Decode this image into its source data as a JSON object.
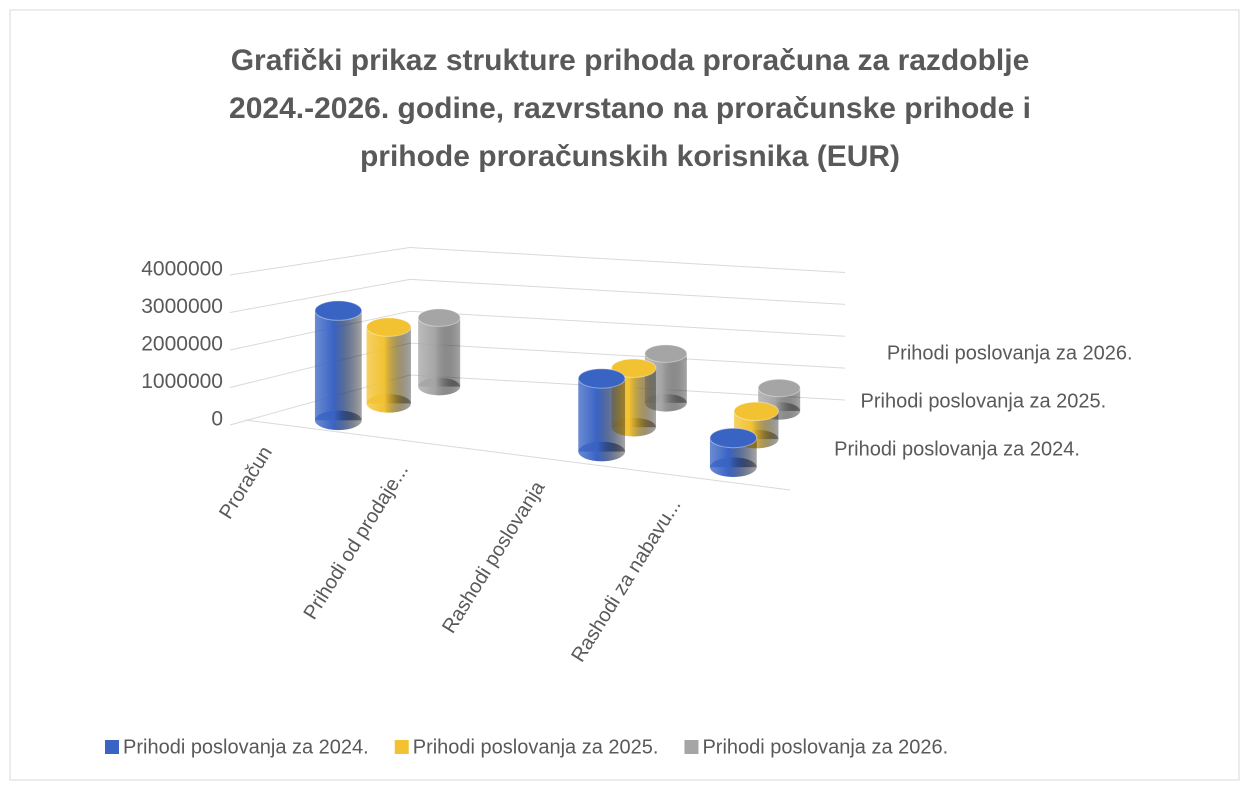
{
  "chart_data": {
    "type": "bar3d",
    "title": [
      "Grafički prikaz strukture prihoda proračuna za razdoblje",
      "2024.-2026. godine, razvrstano na proračunske prihode i",
      "prihode proračunskih korisnika (EUR)"
    ],
    "categories": [
      "Proračun",
      "Prihodi od prodaje...",
      "Rashodi poslovanja",
      "Rashodi za nabavu..."
    ],
    "series": [
      {
        "name": "Prihodi poslovanja za 2024.",
        "color": "#3a64c4",
        "values": [
          3000000,
          0,
          2000000,
          800000
        ]
      },
      {
        "name": "Prihodi poslovanja za 2025.",
        "color": "#f2c232",
        "values": [
          2200000,
          0,
          1700000,
          800000
        ]
      },
      {
        "name": "Prihodi poslovanja za 2026.",
        "color": "#a5a5a5",
        "values": [
          2100000,
          0,
          1500000,
          700000
        ]
      }
    ],
    "ylim": [
      0,
      4000000
    ],
    "yticks": [
      0,
      1000000,
      2000000,
      3000000,
      4000000
    ],
    "grid": true,
    "legend": "bottom"
  }
}
